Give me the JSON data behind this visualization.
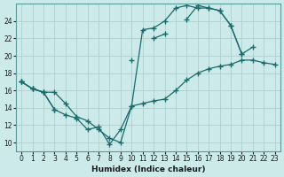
{
  "xlabel": "Humidex (Indice chaleur)",
  "xlim": [
    -0.5,
    23.5
  ],
  "ylim": [
    9,
    26
  ],
  "yticks": [
    10,
    12,
    14,
    16,
    18,
    20,
    22,
    24
  ],
  "xticks": [
    0,
    1,
    2,
    3,
    4,
    5,
    6,
    7,
    8,
    9,
    10,
    11,
    12,
    13,
    14,
    15,
    16,
    17,
    18,
    19,
    20,
    21,
    22,
    23
  ],
  "background_color": "#cdeaea",
  "grid_color": "#b0d0d0",
  "line_color": "#1a6b6b",
  "line1_x": [
    0,
    1,
    2,
    3,
    4,
    5,
    6,
    7,
    8,
    9,
    10,
    11,
    12,
    13,
    14,
    15,
    16,
    17,
    18,
    19,
    20,
    21,
    22,
    23
  ],
  "line1_y": [
    17.0,
    16.2,
    15.8,
    15.8,
    14.5,
    13.0,
    12.5,
    11.5,
    10.5,
    10.0,
    14.2,
    14.5,
    14.8,
    15.0,
    16.0,
    17.2,
    18.0,
    18.5,
    18.8,
    19.0,
    19.5,
    19.5,
    19.2,
    19.0
  ],
  "line2_x": [
    0,
    1,
    2,
    3,
    4,
    5,
    6,
    7,
    8,
    9,
    10,
    11,
    12,
    13,
    14,
    15,
    16,
    17,
    18,
    19,
    20,
    21
  ],
  "line2_y": [
    17.0,
    16.2,
    15.8,
    13.8,
    13.2,
    12.8,
    11.5,
    11.8,
    9.8,
    11.5,
    14.2,
    23.0,
    23.2,
    24.0,
    25.5,
    25.8,
    25.5,
    25.5,
    25.2,
    23.5,
    20.2,
    21.0
  ],
  "line3_x": [
    0,
    1,
    2,
    3,
    10,
    12,
    13,
    15,
    16,
    17,
    18,
    19,
    20
  ],
  "line3_y": [
    17.0,
    16.2,
    15.8,
    13.8,
    19.5,
    22.0,
    22.5,
    24.2,
    25.8,
    25.5,
    25.2,
    23.5,
    20.2
  ]
}
